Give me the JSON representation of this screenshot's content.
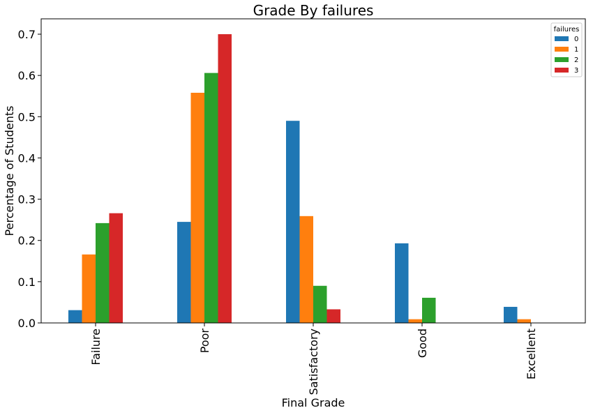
{
  "chart_data": {
    "type": "bar",
    "title": "Grade By failures",
    "xlabel": "Final Grade",
    "ylabel": "Percentage of Students",
    "categories": [
      "Failure",
      "Poor",
      "Satisfactory",
      "Good",
      "Excellent"
    ],
    "series": [
      {
        "name": "0",
        "color": "#1f77b4",
        "values": [
          0.031,
          0.245,
          0.49,
          0.193,
          0.039
        ]
      },
      {
        "name": "1",
        "color": "#ff7f0e",
        "values": [
          0.166,
          0.558,
          0.259,
          0.009,
          0.009
        ]
      },
      {
        "name": "2",
        "color": "#2ca02c",
        "values": [
          0.242,
          0.606,
          0.09,
          0.061,
          0.0
        ]
      },
      {
        "name": "3",
        "color": "#d62728",
        "values": [
          0.266,
          0.7,
          0.033,
          0.0,
          0.0
        ]
      }
    ],
    "ylim": [
      0,
      0.7
    ],
    "yticks": [
      "0.0",
      "0.1",
      "0.2",
      "0.3",
      "0.4",
      "0.5",
      "0.6",
      "0.7"
    ],
    "legend": {
      "title": "failures",
      "position": "top-right"
    },
    "grid": false
  }
}
